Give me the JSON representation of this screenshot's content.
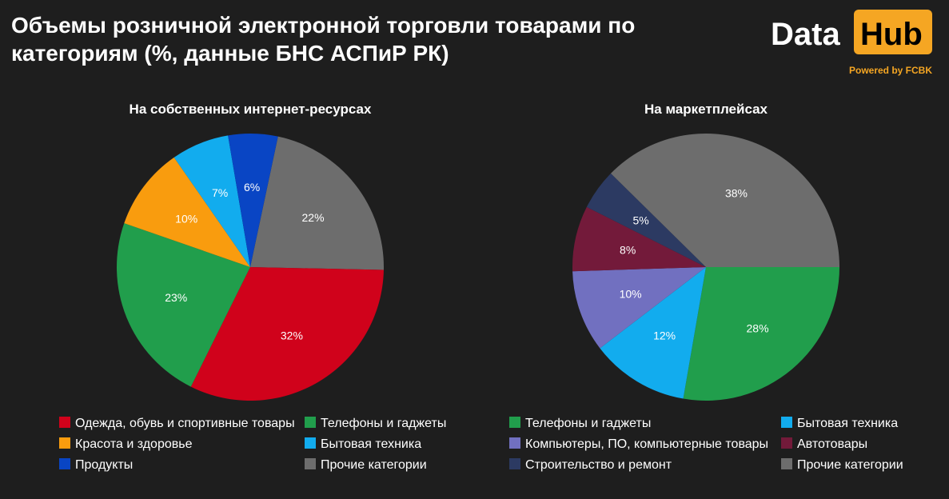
{
  "title": "Объемы розничной электронной торговли товарами по категориям (%, данные БНС АСПиР РК)",
  "logo": {
    "data_text": "Data",
    "hub_text": "Hub",
    "sub_text": "Powered by FCBK",
    "accent": "#f5a623"
  },
  "chart_data": [
    {
      "type": "pie",
      "title": "На собственных интернет-ресурсах",
      "slices": [
        {
          "label": "Прочие категории",
          "value": 22,
          "display": "22%",
          "color": "#6d6d6d"
        },
        {
          "label": "Одежда, обувь и спортивные товары",
          "value": 32,
          "display": "32%",
          "color": "#d0021b"
        },
        {
          "label": "Телефоны и гаджеты",
          "value": 23,
          "display": "23%",
          "color": "#219e4c"
        },
        {
          "label": "Красота и здоровье",
          "value": 10,
          "display": "10%",
          "color": "#f99c0e"
        },
        {
          "label": "Бытовая техника",
          "value": 7,
          "display": "7%",
          "color": "#12acee"
        },
        {
          "label": "Продукты",
          "value": 6,
          "display": "6%",
          "color": "#0945c4"
        }
      ],
      "legend": [
        {
          "label": "Одежда, обувь и спортивные товары",
          "color": "#d0021b"
        },
        {
          "label": "Телефоны и гаджеты",
          "color": "#219e4c"
        },
        {
          "label": "Красота и здоровье",
          "color": "#f99c0e"
        },
        {
          "label": "Бытовая техника",
          "color": "#12acee"
        },
        {
          "label": "Продукты",
          "color": "#0945c4"
        },
        {
          "label": "Прочие категории",
          "color": "#6d6d6d"
        }
      ]
    },
    {
      "type": "pie",
      "title": "На маркетплейсах",
      "slices": [
        {
          "label": "Телефоны и гаджеты",
          "value": 28,
          "display": "28%",
          "color": "#219e4c"
        },
        {
          "label": "Бытовая техника",
          "value": 12,
          "display": "12%",
          "color": "#12acee"
        },
        {
          "label": "Компьютеры, ПО, компьютерные товары",
          "value": 10,
          "display": "10%",
          "color": "#7170c0"
        },
        {
          "label": "Автотовары",
          "value": 8,
          "display": "8%",
          "color": "#731a3a"
        },
        {
          "label": "Строительство и ремонт",
          "value": 5,
          "display": "5%",
          "color": "#2c3a62"
        },
        {
          "label": "Прочие категории",
          "value": 38,
          "display": "38%",
          "color": "#6d6d6d"
        }
      ],
      "legend": [
        {
          "label": "Телефоны и гаджеты",
          "color": "#219e4c"
        },
        {
          "label": "Бытовая техника",
          "color": "#12acee"
        },
        {
          "label": "Компьютеры, ПО, компьютерные товары",
          "color": "#7170c0"
        },
        {
          "label": "Автотовары",
          "color": "#731a3a"
        },
        {
          "label": "Строительство и ремонт",
          "color": "#2c3a62"
        },
        {
          "label": "Прочие категории",
          "color": "#6d6d6d"
        }
      ]
    }
  ]
}
